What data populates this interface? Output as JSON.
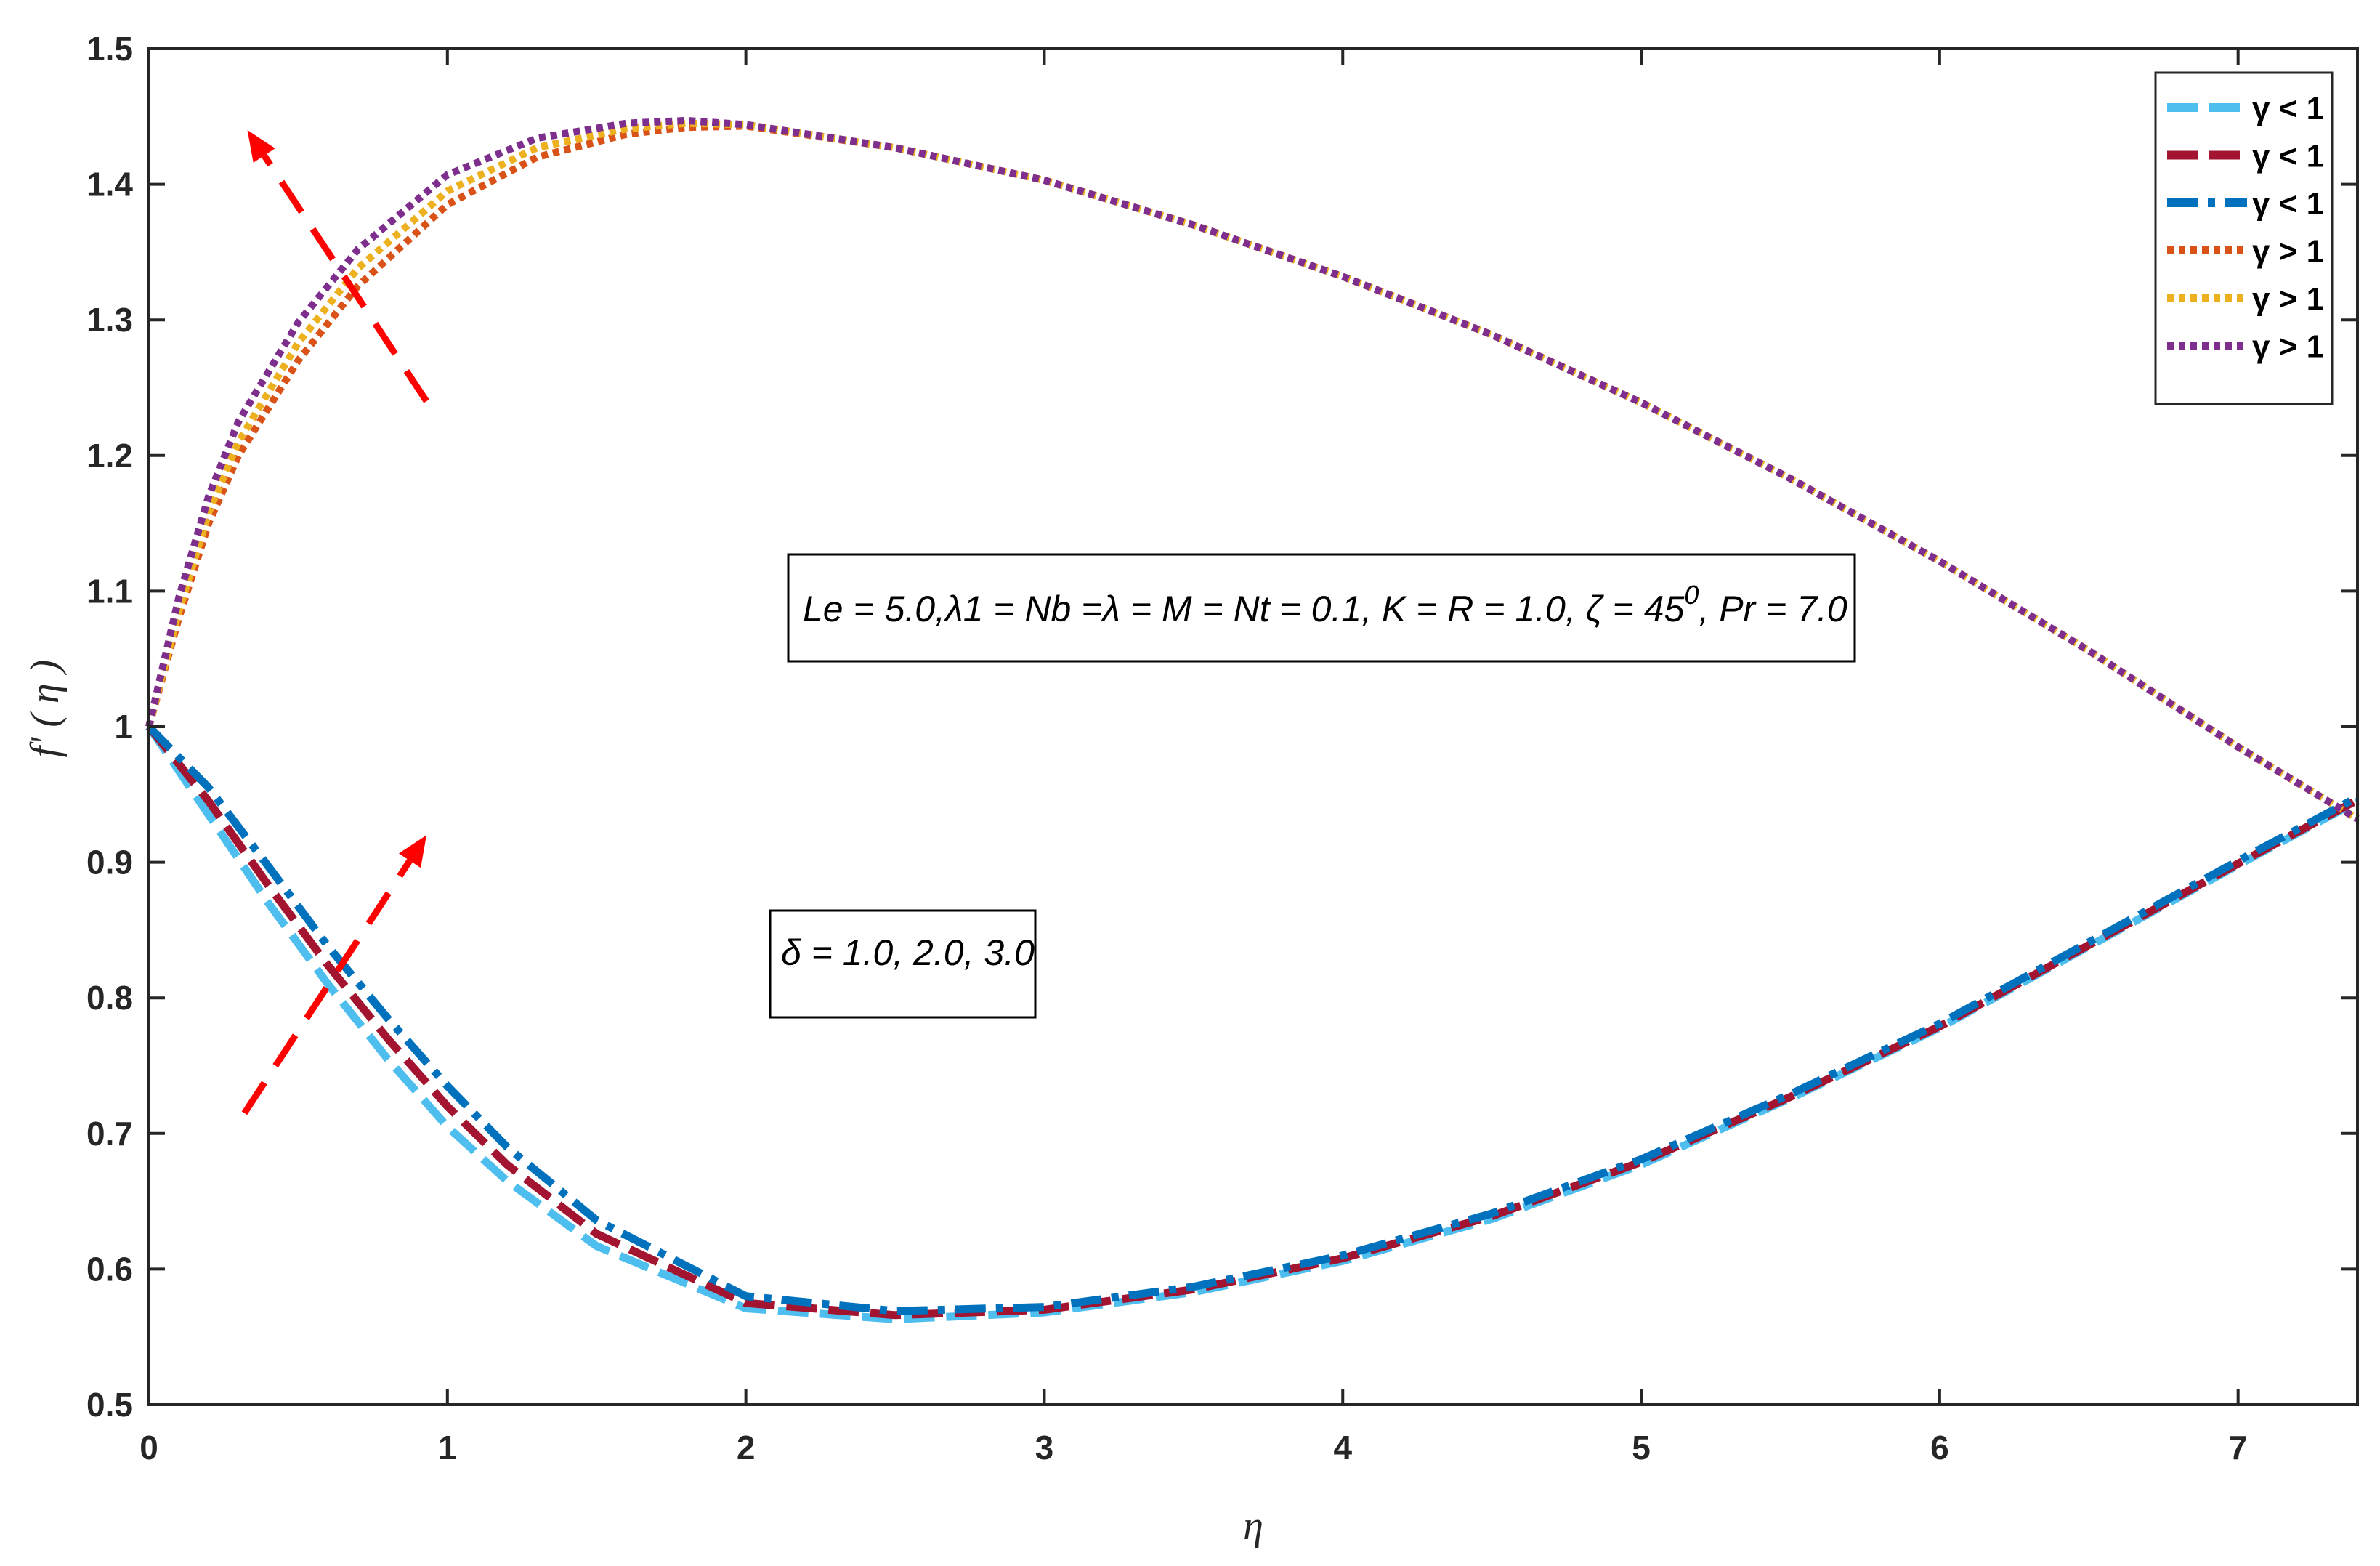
{
  "chart_data": {
    "type": "line",
    "xlabel": "η",
    "ylabel": "f' ( η )",
    "xlim": [
      0,
      7.4
    ],
    "ylim": [
      0.5,
      1.5
    ],
    "xticks": [
      "0",
      "1",
      "2",
      "3",
      "4",
      "5",
      "6",
      "7"
    ],
    "yticks": [
      "0.5",
      "0.6",
      "0.7",
      "0.8",
      "0.9",
      "1",
      "1.1",
      "1.2",
      "1.3",
      "1.4",
      "1.5"
    ],
    "grid": false,
    "legend_position": "top-right",
    "series": [
      {
        "name": "γ < 1",
        "color": "#4DBEEE",
        "style": "dashed",
        "x": [
          0,
          0.2,
          0.4,
          0.6,
          0.8,
          1.0,
          1.2,
          1.5,
          2.0,
          2.5,
          3.0,
          3.5,
          4.0,
          4.5,
          5.0,
          5.5,
          6.0,
          6.5,
          7.0,
          7.4
        ],
        "y": [
          1.0,
          0.935,
          0.87,
          0.81,
          0.755,
          0.705,
          0.665,
          0.617,
          0.571,
          0.563,
          0.568,
          0.583,
          0.606,
          0.637,
          0.677,
          0.726,
          0.778,
          0.838,
          0.898,
          0.945
        ]
      },
      {
        "name": "γ < 1",
        "color": "#A2142F",
        "style": "dashed",
        "x": [
          0,
          0.2,
          0.4,
          0.6,
          0.8,
          1.0,
          1.2,
          1.5,
          2.0,
          2.5,
          3.0,
          3.5,
          4.0,
          4.5,
          5.0,
          5.5,
          6.0,
          6.5,
          7.0,
          7.4
        ],
        "y": [
          1.0,
          0.945,
          0.883,
          0.824,
          0.77,
          0.72,
          0.677,
          0.626,
          0.575,
          0.566,
          0.57,
          0.585,
          0.608,
          0.639,
          0.679,
          0.727,
          0.779,
          0.839,
          0.899,
          0.946
        ]
      },
      {
        "name": "γ < 1",
        "color": "#0072BD",
        "style": "dashdot",
        "x": [
          0,
          0.2,
          0.4,
          0.6,
          0.8,
          1.0,
          1.2,
          1.5,
          2.0,
          2.5,
          3.0,
          3.5,
          4.0,
          4.5,
          5.0,
          5.5,
          6.0,
          6.5,
          7.0,
          7.4
        ],
        "y": [
          1.0,
          0.955,
          0.897,
          0.838,
          0.785,
          0.735,
          0.69,
          0.636,
          0.58,
          0.569,
          0.572,
          0.587,
          0.61,
          0.641,
          0.681,
          0.729,
          0.781,
          0.841,
          0.901,
          0.948
        ]
      },
      {
        "name": "γ > 1",
        "color": "#D95319",
        "style": "dotted",
        "x": [
          0,
          0.1,
          0.2,
          0.3,
          0.5,
          0.7,
          1.0,
          1.3,
          1.6,
          1.8,
          2.0,
          2.5,
          3.0,
          3.5,
          4.0,
          4.5,
          5.0,
          5.5,
          6.0,
          6.5,
          7.0,
          7.4
        ],
        "y": [
          1.0,
          1.08,
          1.15,
          1.2,
          1.27,
          1.325,
          1.385,
          1.42,
          1.437,
          1.442,
          1.443,
          1.427,
          1.403,
          1.37,
          1.332,
          1.289,
          1.239,
          1.183,
          1.122,
          1.056,
          0.985,
          0.932
        ]
      },
      {
        "name": "γ > 1",
        "color": "#EDB120",
        "style": "dotted",
        "x": [
          0,
          0.1,
          0.2,
          0.3,
          0.5,
          0.7,
          1.0,
          1.3,
          1.6,
          1.8,
          2.0,
          2.5,
          3.0,
          3.5,
          4.0,
          4.5,
          5.0,
          5.5,
          6.0,
          6.5,
          7.0,
          7.4
        ],
        "y": [
          1.0,
          1.085,
          1.158,
          1.21,
          1.283,
          1.338,
          1.395,
          1.427,
          1.441,
          1.445,
          1.444,
          1.427,
          1.403,
          1.37,
          1.332,
          1.289,
          1.239,
          1.183,
          1.122,
          1.056,
          0.985,
          0.932
        ]
      },
      {
        "name": "γ > 1",
        "color": "#7E2F8E",
        "style": "dotted",
        "x": [
          0,
          0.1,
          0.2,
          0.3,
          0.5,
          0.7,
          1.0,
          1.3,
          1.6,
          1.8,
          2.0,
          2.5,
          3.0,
          3.5,
          4.0,
          4.5,
          5.0,
          5.5,
          6.0,
          6.5,
          7.0,
          7.4
        ],
        "y": [
          1.0,
          1.095,
          1.17,
          1.225,
          1.298,
          1.352,
          1.407,
          1.434,
          1.445,
          1.447,
          1.444,
          1.427,
          1.403,
          1.37,
          1.332,
          1.289,
          1.239,
          1.183,
          1.122,
          1.056,
          0.985,
          0.932
        ]
      }
    ],
    "annotations": [
      {
        "text": "Le = 5.0,λ1 = Nb =λ = M = Nt = 0.1, K = R = 1.0, ζ = 45",
        "superscript": "0",
        "suffix": ", Pr = 7.0"
      },
      {
        "text": "δ = 1.0, 2.0, 3.0"
      }
    ],
    "arrow_color": "#FF0000"
  }
}
